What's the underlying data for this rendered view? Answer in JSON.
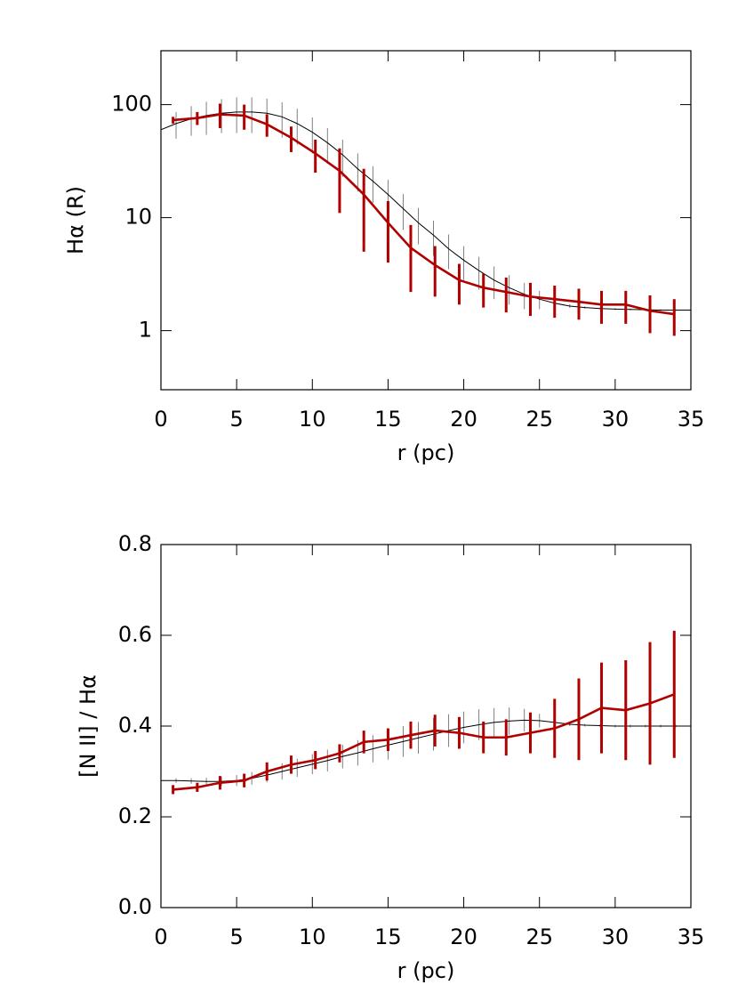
{
  "chart_data": [
    {
      "type": "line",
      "log_y": true,
      "xlabel": "r (pc)",
      "ylabel": "Hα (R)",
      "xlim": [
        0,
        35
      ],
      "xticks": [
        0,
        5,
        10,
        15,
        20,
        25,
        30,
        35
      ],
      "ylim": [
        0.3,
        300
      ],
      "yticks": [
        1,
        10,
        100
      ],
      "series": [
        {
          "color": "#000000",
          "x": [
            0,
            1,
            2,
            3,
            4,
            5,
            6,
            7,
            8,
            9,
            10,
            11,
            12,
            13,
            14,
            15,
            16,
            17,
            18,
            19,
            20,
            21,
            22,
            23,
            24,
            25,
            26,
            27,
            28,
            29,
            30,
            31,
            32,
            33,
            34,
            35
          ],
          "values": [
            60,
            68,
            75,
            80,
            84,
            86,
            86,
            84,
            78,
            68,
            57,
            46,
            36,
            27,
            21,
            16,
            12,
            9,
            7,
            5.3,
            4.2,
            3.4,
            2.8,
            2.4,
            2.1,
            1.9,
            1.75,
            1.65,
            1.6,
            1.57,
            1.55,
            1.54,
            1.53,
            1.52,
            1.52,
            1.52
          ],
          "errors": [
            12,
            18,
            22,
            26,
            28,
            30,
            30,
            29,
            27,
            24,
            20,
            16,
            13,
            10,
            7.5,
            5.6,
            4.2,
            3.2,
            2.4,
            1.8,
            1.4,
            1.1,
            0.9,
            0.7,
            0.55,
            0.35,
            0.15,
            0.06,
            0.04,
            0.03,
            0.03,
            0.03,
            0.03,
            0.03,
            0.03,
            0.03
          ]
        },
        {
          "color": "#b00000",
          "x": [
            0.8,
            2.4,
            3.9,
            5.5,
            7.0,
            8.6,
            10.2,
            11.8,
            13.4,
            15.0,
            16.5,
            18.1,
            19.7,
            21.3,
            22.8,
            24.4,
            26.0,
            27.6,
            29.1,
            30.7,
            32.3,
            33.9
          ],
          "values": [
            73,
            76,
            82,
            80,
            67,
            51,
            37,
            26,
            16,
            9,
            5.4,
            3.8,
            2.8,
            2.4,
            2.2,
            2.0,
            1.9,
            1.8,
            1.7,
            1.7,
            1.5,
            1.4
          ],
          "errors": [
            5,
            10,
            20,
            20,
            15,
            13,
            12,
            15,
            11,
            5,
            3.2,
            1.8,
            1.1,
            0.8,
            0.75,
            0.65,
            0.6,
            0.55,
            0.55,
            0.55,
            0.55,
            0.5
          ]
        }
      ]
    },
    {
      "type": "line",
      "log_y": false,
      "xlabel": "r (pc)",
      "ylabel": "[N II] / Hα",
      "xlim": [
        0,
        35
      ],
      "xticks": [
        0,
        5,
        10,
        15,
        20,
        25,
        30,
        35
      ],
      "ylim": [
        0,
        0.8
      ],
      "yticks": [
        {
          "value": 0,
          "label": "0.0"
        },
        0.2,
        0.4,
        0.6,
        0.8
      ],
      "series": [
        {
          "color": "#000000",
          "x": [
            0,
            1,
            2,
            3,
            4,
            5,
            6,
            7,
            8,
            9,
            10,
            11,
            12,
            13,
            14,
            15,
            16,
            17,
            18,
            19,
            20,
            21,
            22,
            23,
            24,
            25,
            26,
            27,
            28,
            29,
            30,
            31,
            32,
            33,
            34,
            35
          ],
          "values": [
            0.28,
            0.28,
            0.279,
            0.278,
            0.278,
            0.28,
            0.285,
            0.292,
            0.3,
            0.308,
            0.316,
            0.324,
            0.333,
            0.341,
            0.35,
            0.358,
            0.366,
            0.374,
            0.382,
            0.39,
            0.397,
            0.403,
            0.408,
            0.411,
            0.413,
            0.412,
            0.408,
            0.404,
            0.402,
            0.401,
            0.4,
            0.4,
            0.4,
            0.4,
            0.4,
            0.4
          ],
          "errors": [
            0.005,
            0.005,
            0.006,
            0.008,
            0.01,
            0.012,
            0.014,
            0.016,
            0.018,
            0.02,
            0.022,
            0.024,
            0.026,
            0.028,
            0.03,
            0.032,
            0.034,
            0.035,
            0.036,
            0.036,
            0.035,
            0.034,
            0.032,
            0.03,
            0.025,
            0.015,
            0.008,
            0.004,
            0.003,
            0.003,
            0.003,
            0.003,
            0.003,
            0.003,
            0.003,
            0.003
          ]
        },
        {
          "color": "#b00000",
          "x": [
            0.8,
            2.4,
            3.9,
            5.5,
            7.0,
            8.6,
            10.2,
            11.8,
            13.4,
            15.0,
            16.5,
            18.1,
            19.7,
            21.3,
            22.8,
            24.4,
            26.0,
            27.6,
            29.1,
            30.7,
            32.3,
            33.9
          ],
          "values": [
            0.26,
            0.265,
            0.275,
            0.28,
            0.3,
            0.315,
            0.325,
            0.34,
            0.365,
            0.37,
            0.38,
            0.39,
            0.385,
            0.375,
            0.375,
            0.385,
            0.395,
            0.415,
            0.44,
            0.435,
            0.45,
            0.47
          ],
          "errors": [
            0.01,
            0.01,
            0.015,
            0.015,
            0.02,
            0.02,
            0.02,
            0.02,
            0.025,
            0.025,
            0.03,
            0.035,
            0.035,
            0.035,
            0.04,
            0.045,
            0.065,
            0.09,
            0.1,
            0.11,
            0.135,
            0.14
          ]
        }
      ]
    }
  ]
}
